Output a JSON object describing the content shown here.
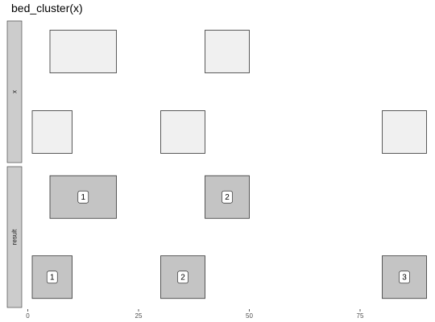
{
  "title": "bed_cluster(x)",
  "chart_data": {
    "type": "interval",
    "title": "bed_cluster(x)",
    "xlabel": "",
    "ylabel": "",
    "xlim": [
      -1,
      91
    ],
    "x_ticks": [
      0,
      25,
      50,
      75
    ],
    "grid": false,
    "panels": [
      {
        "label": "x",
        "fill": "#f0f0f0",
        "rows": [
          [
            {
              "start": 5,
              "end": 20
            },
            {
              "start": 40,
              "end": 50
            }
          ],
          [
            {
              "start": 1,
              "end": 10
            },
            {
              "start": 30,
              "end": 40
            },
            {
              "start": 80,
              "end": 90
            }
          ]
        ]
      },
      {
        "label": "result",
        "fill": "#c4c4c4",
        "rows": [
          [
            {
              "start": 5,
              "end": 20,
              "id": "1"
            },
            {
              "start": 40,
              "end": 50,
              "id": "2"
            }
          ],
          [
            {
              "start": 1,
              "end": 10,
              "id": "1"
            },
            {
              "start": 30,
              "end": 40,
              "id": "2"
            },
            {
              "start": 80,
              "end": 90,
              "id": "3"
            }
          ]
        ]
      }
    ]
  },
  "colors": {
    "strip_fill": "#cccccc",
    "interval_border": "#333333",
    "x_fill": "#f0f0f0",
    "result_fill": "#c4c4c4",
    "label_box": "#ffffff"
  }
}
